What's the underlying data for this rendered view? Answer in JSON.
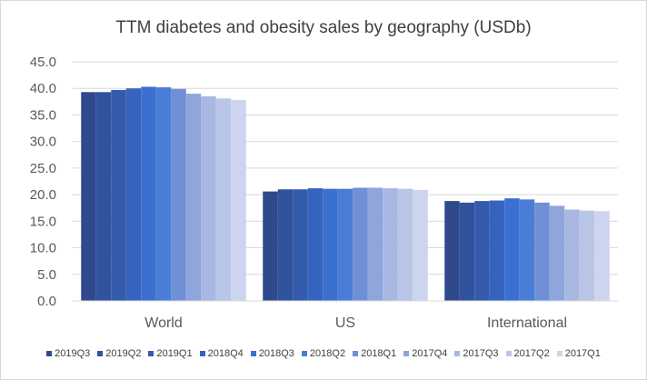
{
  "chart_data": {
    "type": "bar",
    "title": "TTM diabetes and obesity sales by geography (USDb)",
    "xlabel": "",
    "ylabel": "",
    "categories": [
      "World",
      "US",
      "International"
    ],
    "ylim": [
      0,
      45
    ],
    "yticks": [
      "0.0",
      "5.0",
      "10.0",
      "15.0",
      "20.0",
      "25.0",
      "30.0",
      "35.0",
      "40.0",
      "45.0"
    ],
    "grid": true,
    "legend_position": "bottom",
    "series": [
      {
        "name": "2019Q3",
        "color": "#2e4a8c",
        "values": [
          39.3,
          20.6,
          18.8
        ]
      },
      {
        "name": "2019Q2",
        "color": "#31529c",
        "values": [
          39.3,
          21.0,
          18.5
        ]
      },
      {
        "name": "2019Q1",
        "color": "#335aab",
        "values": [
          39.7,
          21.0,
          18.8
        ]
      },
      {
        "name": "2018Q4",
        "color": "#3663bd",
        "values": [
          40.0,
          21.2,
          18.9
        ]
      },
      {
        "name": "2018Q3",
        "color": "#3b6fd0",
        "values": [
          40.3,
          21.1,
          19.3
        ]
      },
      {
        "name": "2018Q2",
        "color": "#4a7dd6",
        "values": [
          40.2,
          21.1,
          19.1
        ]
      },
      {
        "name": "2018Q1",
        "color": "#6f90d6",
        "values": [
          39.9,
          21.3,
          18.5
        ]
      },
      {
        "name": "2017Q4",
        "color": "#8ea6dc",
        "values": [
          39.0,
          21.3,
          17.9
        ]
      },
      {
        "name": "2017Q3",
        "color": "#a8b8e2",
        "values": [
          38.5,
          21.2,
          17.2
        ]
      },
      {
        "name": "2017Q2",
        "color": "#bac6e8",
        "values": [
          38.1,
          21.1,
          17.0
        ]
      },
      {
        "name": "2017Q1",
        "color": "#ccd4ee",
        "values": [
          37.8,
          20.9,
          16.9
        ]
      }
    ]
  }
}
